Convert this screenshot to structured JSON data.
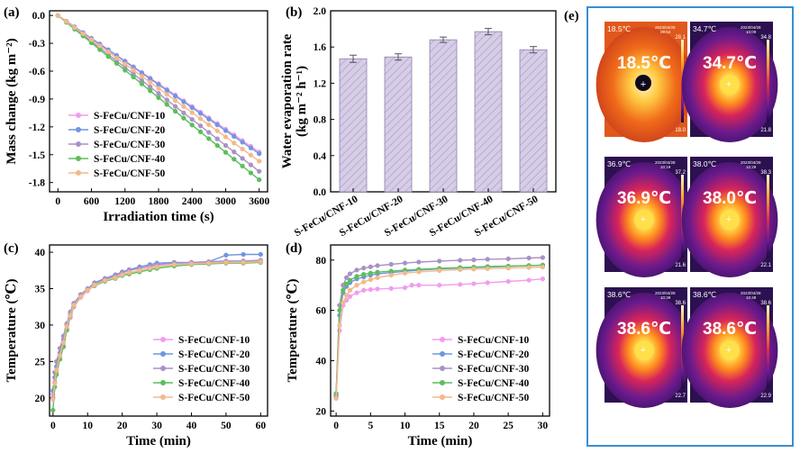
{
  "panel_labels": {
    "a": "(a)",
    "b": "(b)",
    "c": "(c)",
    "d": "(d)",
    "e": "(e)"
  },
  "colors": {
    "CNF-10": "#f29cf0",
    "CNF-20": "#6f96e0",
    "CNF-30": "#a991c6",
    "CNF-40": "#5cbe5c",
    "CNF-50": "#f3b98c",
    "bar_fill": "#d3c9e3",
    "bar_stroke": "#8f82ad",
    "thermo_frame": "#3a8fd1"
  },
  "chart_data": [
    {
      "id": "a",
      "type": "line",
      "xlabel": "Irradiation time (s)",
      "ylabel": "Mass change (kg m⁻²)",
      "xlim": [
        -150,
        3750
      ],
      "ylim": [
        -1.9,
        0.05
      ],
      "xticks": [
        "0",
        "600",
        "1200",
        "1800",
        "2400",
        "3000",
        "3600"
      ],
      "yticks": [
        "0.0",
        "-0.3",
        "-0.6",
        "-0.9",
        "-1.2",
        "-1.5",
        "-1.8"
      ],
      "legend": "bottom-left",
      "series": [
        {
          "name": "S-FeCu/CNF-10",
          "key": "CNF-10",
          "x": [
            0,
            3600
          ],
          "y": [
            0,
            -1.47
          ]
        },
        {
          "name": "S-FeCu/CNF-20",
          "key": "CNF-20",
          "x": [
            0,
            3600
          ],
          "y": [
            0,
            -1.49
          ]
        },
        {
          "name": "S-FeCu/CNF-30",
          "key": "CNF-30",
          "x": [
            0,
            3600
          ],
          "y": [
            0,
            -1.68
          ]
        },
        {
          "name": "S-FeCu/CNF-40",
          "key": "CNF-40",
          "x": [
            0,
            3600
          ],
          "y": [
            0,
            -1.77
          ]
        },
        {
          "name": "S-FeCu/CNF-50",
          "key": "CNF-50",
          "x": [
            0,
            3600
          ],
          "y": [
            0,
            -1.57
          ]
        }
      ]
    },
    {
      "id": "b",
      "type": "bar",
      "xlabel": "",
      "ylabel": "Water evaporation rate",
      "ylabel_unit": "(kg m⁻² h⁻¹)",
      "ylim": [
        0,
        2.0
      ],
      "yticks": [
        "0.0",
        "0.4",
        "0.8",
        "1.2",
        "1.6",
        "2.0"
      ],
      "categories": [
        "S-FeCu/CNF-10",
        "S-FeCu/CNF-20",
        "S-FeCu/CNF-30",
        "S-FeCu/CNF-40",
        "S-FeCu/CNF-50"
      ],
      "values": [
        1.47,
        1.49,
        1.68,
        1.77,
        1.57
      ],
      "errors": [
        0.04,
        0.035,
        0.03,
        0.035,
        0.035
      ]
    },
    {
      "id": "c",
      "type": "line",
      "xlabel": "Time (min)",
      "ylabel": "Temperature (℃)",
      "xlim": [
        -1,
        62
      ],
      "ylim": [
        17.5,
        41
      ],
      "xticks": [
        "0",
        "10",
        "20",
        "30",
        "40",
        "50",
        "60"
      ],
      "yticks": [
        "20",
        "25",
        "30",
        "35",
        "40"
      ],
      "legend": "bottom-right",
      "series": [
        {
          "name": "S-FeCu/CNF-10",
          "key": "CNF-10",
          "x": [
            0,
            0.5,
            1,
            2,
            3,
            4,
            5,
            6,
            8,
            10,
            12,
            15,
            18,
            20,
            22,
            25,
            28,
            30,
            35,
            40,
            45,
            50,
            55,
            60
          ],
          "y": [
            20.5,
            22.2,
            23.5,
            25.5,
            27.2,
            29.5,
            31.0,
            32.5,
            33.8,
            34.7,
            35.5,
            36.2,
            36.6,
            37.0,
            37.2,
            37.5,
            37.9,
            38.1,
            38.3,
            38.5,
            38.6,
            38.7,
            38.8,
            38.8
          ]
        },
        {
          "name": "S-FeCu/CNF-20",
          "key": "CNF-20",
          "x": [
            0,
            0.5,
            1,
            2,
            3,
            4,
            5,
            6,
            8,
            10,
            12,
            15,
            18,
            20,
            22,
            25,
            28,
            30,
            35,
            40,
            45,
            50,
            55,
            60
          ],
          "y": [
            21.0,
            22.8,
            24.3,
            26.2,
            28.0,
            30.0,
            31.5,
            32.8,
            34.0,
            35.0,
            35.8,
            36.4,
            36.9,
            37.3,
            37.6,
            38.0,
            38.3,
            38.5,
            38.6,
            38.6,
            38.7,
            39.6,
            39.7,
            39.7
          ]
        },
        {
          "name": "S-FeCu/CNF-30",
          "key": "CNF-30",
          "x": [
            0,
            0.5,
            1,
            2,
            3,
            4,
            5,
            6,
            8,
            10,
            12,
            15,
            18,
            20,
            22,
            25,
            28,
            30,
            35,
            40,
            45,
            50,
            55,
            60
          ],
          "y": [
            20.0,
            23.5,
            25.0,
            26.8,
            28.5,
            30.2,
            31.8,
            33.0,
            34.2,
            35.0,
            35.7,
            36.3,
            36.8,
            37.2,
            37.5,
            37.8,
            38.1,
            38.3,
            38.5,
            38.6,
            38.7,
            38.8,
            38.8,
            38.9
          ]
        },
        {
          "name": "S-FeCu/CNF-40",
          "key": "CNF-40",
          "x": [
            0,
            0.5,
            1,
            2,
            3,
            4,
            5,
            6,
            8,
            10,
            12,
            15,
            18,
            20,
            22,
            25,
            28,
            30,
            35,
            40,
            45,
            50,
            55,
            60
          ],
          "y": [
            18.3,
            21.5,
            23.2,
            25.3,
            27.0,
            29.3,
            31.2,
            32.6,
            33.9,
            34.8,
            35.4,
            36.0,
            36.4,
            36.8,
            37.0,
            37.3,
            37.6,
            37.8,
            38.1,
            38.3,
            38.4,
            38.5,
            38.5,
            38.6
          ]
        },
        {
          "name": "S-FeCu/CNF-50",
          "key": "CNF-50",
          "x": [
            0,
            0.5,
            1,
            2,
            3,
            4,
            5,
            6,
            8,
            10,
            12,
            15,
            18,
            20,
            22,
            25,
            28,
            30,
            35,
            40,
            45,
            50,
            55,
            60
          ],
          "y": [
            19.8,
            22.0,
            23.8,
            25.8,
            27.6,
            29.8,
            31.3,
            32.7,
            33.9,
            34.8,
            35.5,
            36.1,
            36.5,
            36.9,
            37.2,
            37.5,
            37.8,
            38.0,
            38.3,
            38.4,
            38.5,
            38.6,
            38.6,
            38.7
          ]
        }
      ]
    },
    {
      "id": "d",
      "type": "line",
      "xlabel": "Time (min)",
      "ylabel": "Temperature (℃)",
      "xlim": [
        -0.8,
        31
      ],
      "ylim": [
        18,
        86
      ],
      "xticks": [
        "0",
        "5",
        "10",
        "15",
        "20",
        "25",
        "30"
      ],
      "yticks": [
        "20",
        "40",
        "60",
        "80"
      ],
      "legend": "bottom-right",
      "series": [
        {
          "name": "S-FeCu/CNF-10",
          "key": "CNF-10",
          "x": [
            0,
            0.5,
            1,
            1.5,
            2,
            3,
            4,
            5,
            6,
            8,
            10,
            11,
            12,
            15,
            18,
            20,
            22,
            25,
            28,
            30
          ],
          "y": [
            25.5,
            52,
            62,
            64,
            65.5,
            67,
            68,
            68.3,
            68.5,
            68.7,
            69,
            70,
            70,
            70,
            70.3,
            70.6,
            71,
            71.5,
            72,
            72.5
          ]
        },
        {
          "name": "S-FeCu/CNF-20",
          "key": "CNF-20",
          "x": [
            0,
            0.5,
            1,
            1.5,
            2,
            3,
            4,
            5,
            6,
            8,
            10,
            12,
            15,
            18,
            20,
            22,
            25,
            28,
            30
          ],
          "y": [
            26,
            58,
            67,
            69.5,
            71,
            72.5,
            73.3,
            74,
            74.5,
            75,
            75.5,
            76,
            76.5,
            76.8,
            77,
            77.2,
            77.5,
            77.8,
            78
          ]
        },
        {
          "name": "S-FeCu/CNF-30",
          "key": "CNF-30",
          "x": [
            0,
            0.5,
            1,
            1.5,
            2,
            3,
            4,
            5,
            6,
            8,
            10,
            12,
            15,
            18,
            20,
            22,
            25,
            28,
            30
          ],
          "y": [
            26.5,
            62,
            70,
            73,
            74.5,
            76,
            76.8,
            77.3,
            77.8,
            78.3,
            78.8,
            79.2,
            79.6,
            79.9,
            80.1,
            80.3,
            80.5,
            80.8,
            81
          ]
        },
        {
          "name": "S-FeCu/CNF-40",
          "key": "CNF-40",
          "x": [
            0,
            0.5,
            1,
            1.5,
            2,
            3,
            4,
            5,
            6,
            8,
            10,
            12,
            15,
            18,
            20,
            22,
            25,
            28,
            30
          ],
          "y": [
            27,
            60,
            68,
            70.5,
            72,
            73.5,
            74.3,
            74.8,
            75.2,
            75.6,
            76,
            76.3,
            76.7,
            77,
            77.2,
            77.4,
            77.6,
            77.8,
            78
          ]
        },
        {
          "name": "S-FeCu/CNF-50",
          "key": "CNF-50",
          "x": [
            0,
            0.5,
            1,
            1.5,
            2,
            3,
            4,
            5,
            6,
            8,
            10,
            12,
            15,
            18,
            20,
            22,
            25,
            28,
            30
          ],
          "y": [
            25,
            54,
            63,
            66,
            68,
            70,
            71.3,
            72.2,
            73,
            74,
            74.8,
            75.3,
            75.8,
            76.2,
            76.4,
            76.6,
            76.8,
            77,
            77.2
          ]
        }
      ]
    }
  ],
  "thermal_images": [
    {
      "temp": "18.5℃",
      "corner": "18.5℃",
      "date": "2023/04/28",
      "time": "09:54",
      "scale_max": "28.1",
      "scale_min": "18.0"
    },
    {
      "temp": "34.7℃",
      "corner": "34.7℃",
      "date": "2023/04/28",
      "time": "10:09",
      "scale_max": "34.8",
      "scale_min": "21.8"
    },
    {
      "temp": "36.9℃",
      "corner": "36.9℃",
      "date": "2023/04/28",
      "time": "10:19",
      "scale_max": "37.2",
      "scale_min": "21.6"
    },
    {
      "temp": "38.0℃",
      "corner": "38.0℃",
      "date": "2023/04/28",
      "time": "10:29",
      "scale_max": "38.3",
      "scale_min": "22.1"
    },
    {
      "temp": "38.6℃",
      "corner": "38.6℃",
      "date": "2023/04/28",
      "time": "10:39",
      "scale_max": "38.6",
      "scale_min": "22.7"
    },
    {
      "temp": "38.6℃",
      "corner": "38.6℃",
      "date": "2023/04/28",
      "time": "10:49",
      "scale_max": "38.6",
      "scale_min": "22.9"
    }
  ]
}
